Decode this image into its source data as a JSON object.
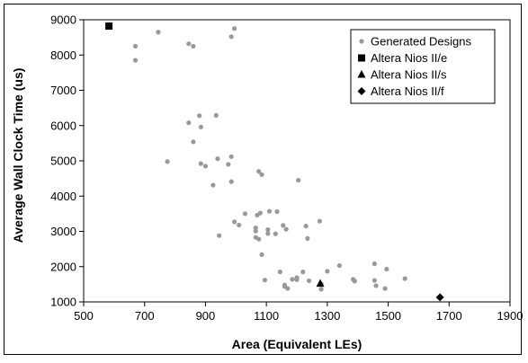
{
  "chart_data": {
    "type": "scatter",
    "title": "",
    "xlabel": "Area (Equivalent LEs)",
    "ylabel": "Average Wall Clock Time (us)",
    "xlim": [
      500,
      1900
    ],
    "ylim": [
      1000,
      9000
    ],
    "xticks": [
      500,
      700,
      900,
      1100,
      1300,
      1500,
      1700,
      1900
    ],
    "yticks": [
      1000,
      2000,
      3000,
      4000,
      5000,
      6000,
      7000,
      8000,
      9000
    ],
    "grid": false,
    "legend_position": "top-right",
    "series": [
      {
        "name": "Generated Designs",
        "marker": "circle",
        "color": "#999999",
        "points": [
          [
            670,
            8250
          ],
          [
            670,
            7850
          ],
          [
            745,
            8650
          ],
          [
            845,
            8320
          ],
          [
            860,
            8250
          ],
          [
            985,
            8520
          ],
          [
            995,
            8750
          ],
          [
            775,
            4980
          ],
          [
            845,
            6080
          ],
          [
            935,
            6290
          ],
          [
            880,
            6280
          ],
          [
            885,
            5960
          ],
          [
            860,
            5540
          ],
          [
            985,
            5120
          ],
          [
            940,
            5060
          ],
          [
            900,
            4850
          ],
          [
            975,
            4900
          ],
          [
            925,
            4310
          ],
          [
            885,
            4920
          ],
          [
            985,
            4410
          ],
          [
            945,
            2880
          ],
          [
            995,
            3270
          ],
          [
            1010,
            3180
          ],
          [
            1030,
            3500
          ],
          [
            1070,
            3460
          ],
          [
            1075,
            4700
          ],
          [
            1085,
            4610
          ],
          [
            1065,
            3100
          ],
          [
            1065,
            3010
          ],
          [
            1080,
            3520
          ],
          [
            1110,
            3570
          ],
          [
            1135,
            3560
          ],
          [
            1105,
            3050
          ],
          [
            1105,
            2940
          ],
          [
            1130,
            2930
          ],
          [
            1155,
            3170
          ],
          [
            1165,
            3060
          ],
          [
            1065,
            2830
          ],
          [
            1075,
            2780
          ],
          [
            1085,
            2340
          ],
          [
            1095,
            1620
          ],
          [
            1145,
            1850
          ],
          [
            1160,
            1480
          ],
          [
            1160,
            1440
          ],
          [
            1170,
            1380
          ],
          [
            1185,
            1640
          ],
          [
            1200,
            1690
          ],
          [
            1200,
            1630
          ],
          [
            1220,
            1850
          ],
          [
            1205,
            4450
          ],
          [
            1230,
            3150
          ],
          [
            1235,
            2800
          ],
          [
            1275,
            3290
          ],
          [
            1240,
            1600
          ],
          [
            1280,
            1510
          ],
          [
            1280,
            1360
          ],
          [
            1300,
            1870
          ],
          [
            1340,
            2030
          ],
          [
            1385,
            1640
          ],
          [
            1390,
            1590
          ],
          [
            1455,
            2080
          ],
          [
            1495,
            1930
          ],
          [
            1455,
            1610
          ],
          [
            1460,
            1460
          ],
          [
            1490,
            1380
          ],
          [
            1555,
            1660
          ]
        ]
      },
      {
        "name": "Altera Nios II/e",
        "marker": "square",
        "color": "#000000",
        "points": [
          [
            583,
            8820
          ]
        ]
      },
      {
        "name": "Altera Nios II/s",
        "marker": "triangle",
        "color": "#000000",
        "points": [
          [
            1277,
            1520
          ]
        ]
      },
      {
        "name": "Altera Nios II/f",
        "marker": "diamond",
        "color": "#000000",
        "points": [
          [
            1670,
            1130
          ]
        ]
      }
    ]
  }
}
